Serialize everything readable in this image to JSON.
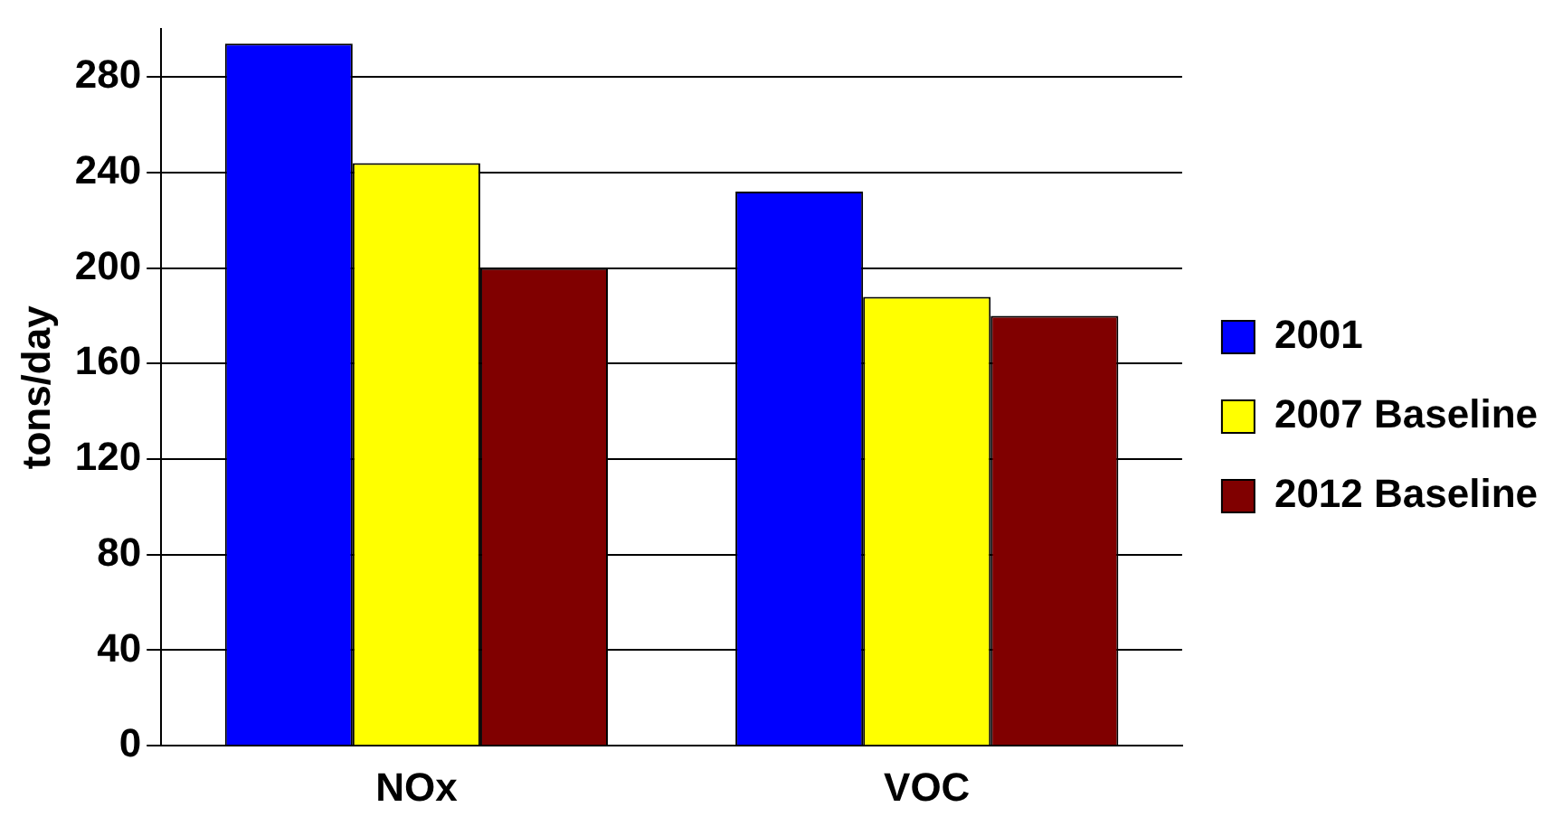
{
  "chart_data": {
    "type": "bar",
    "ylabel": "tons/day",
    "categories": [
      "NOx",
      "VOC"
    ],
    "series": [
      {
        "name": "2001",
        "color": "#0000ff",
        "values": [
          294,
          232
        ]
      },
      {
        "name": "2007 Baseline",
        "color": "#ffff00",
        "values": [
          244,
          188
        ]
      },
      {
        "name": "2012 Baseline",
        "color": "#800000",
        "values": [
          200,
          180
        ]
      }
    ],
    "ylim": [
      0,
      300
    ],
    "yticks": [
      0,
      40,
      80,
      120,
      160,
      200,
      240,
      280
    ],
    "grid": "y",
    "legend": "right"
  }
}
